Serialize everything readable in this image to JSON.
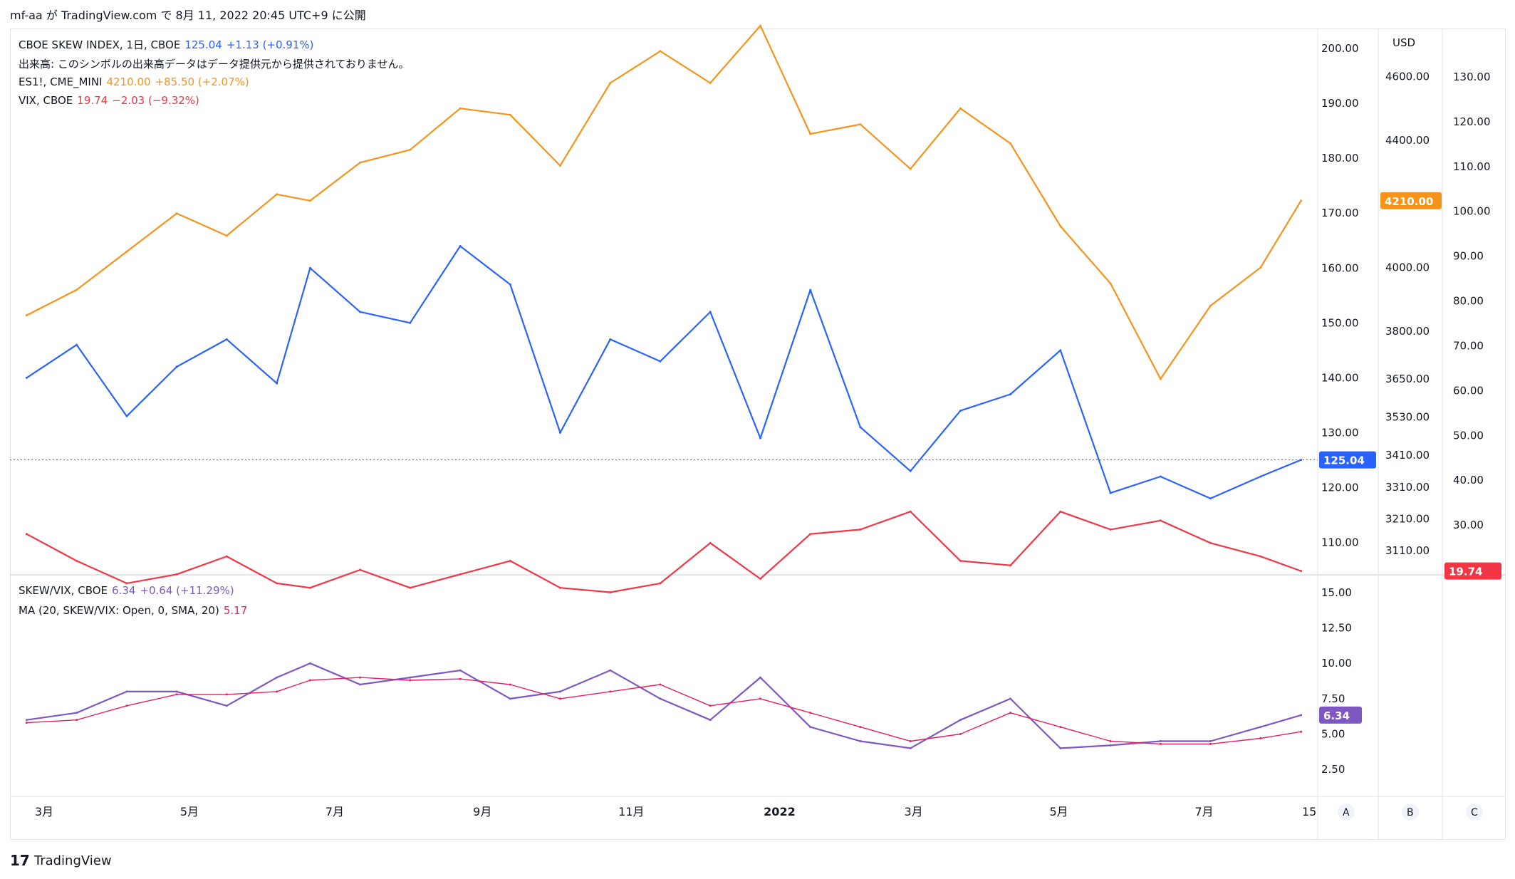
{
  "header": {
    "text": "mf-aa が TradingView.com で 8月 11, 2022 20:45 UTC+9 に公開"
  },
  "footer": {
    "logo": "17",
    "brand": "TradingView"
  },
  "legend_top": [
    {
      "name": "CBOE SKEW INDEX, 1日, CBOE",
      "value": "125.04",
      "change": "+1.13 (+0.91%)",
      "color": "#2962ff"
    },
    {
      "name": "出来高: このシンボルの出来高データはデータ提供元から提供されておりません。",
      "value": "",
      "change": "",
      "color": "#131722"
    },
    {
      "name": "ES1!, CME_MINI",
      "value": "4210.00",
      "change": "+85.50 (+2.07%)",
      "color": "#f7931a"
    },
    {
      "name": "VIX, CBOE",
      "value": "19.74",
      "change": "−2.03 (−9.32%)",
      "color": "#f23645"
    }
  ],
  "legend_bottom": [
    {
      "name": "SKEW/VIX, CBOE",
      "value": "6.34",
      "change": "+0.64 (+11.29%)",
      "color": "#7e57c2"
    },
    {
      "name": "MA (20, SKEW/VIX: Open, 0, SMA, 20)",
      "value": "5.17",
      "change": "",
      "color": "#e91e63"
    }
  ],
  "axes": {
    "usd_label": "USD",
    "skew_ticks": [
      "200.00",
      "190.00",
      "180.00",
      "170.00",
      "160.00",
      "150.00",
      "140.00",
      "130.00",
      "120.00",
      "110.00"
    ],
    "es_ticks": [
      "4600.00",
      "4400.00",
      "4210.00",
      "4000.00",
      "3800.00",
      "3650.00",
      "3530.00",
      "3410.00",
      "3310.00",
      "3210.00",
      "3110.00"
    ],
    "vix_ticks": [
      "130.00",
      "120.00",
      "110.00",
      "100.00",
      "90.00",
      "80.00",
      "70.00",
      "60.00",
      "50.00",
      "40.00",
      "30.00"
    ],
    "ratio_ticks": [
      "15.00",
      "12.50",
      "10.00",
      "7.50",
      "5.00",
      "2.50"
    ],
    "x_ticks": [
      "3月",
      "5月",
      "7月",
      "9月",
      "11月",
      "2022",
      "3月",
      "5月",
      "7月",
      "15"
    ],
    "scale_buttons": [
      "A",
      "B",
      "C"
    ]
  },
  "badges": {
    "skew": "125.04",
    "es": "4210.00",
    "vix": "19.74",
    "ratio": "6.34"
  },
  "colors": {
    "skew": "#2962ff",
    "es": "#f7931a",
    "vix": "#f23645",
    "ratio": "#7e57c2",
    "ma": "#e91e63"
  },
  "chart_data": [
    {
      "type": "line",
      "title": "CBOE SKEW INDEX / ES1! / VIX",
      "x_range": [
        "2021-02-15",
        "2022-08-15"
      ],
      "series": [
        {
          "name": "CBOE SKEW INDEX",
          "axis": "SKEW",
          "ylim": [
            105,
            203
          ],
          "x": [
            "2021-02-22",
            "2021-03-15",
            "2021-04-05",
            "2021-04-26",
            "2021-05-17",
            "2021-06-07",
            "2021-06-21",
            "2021-07-12",
            "2021-08-02",
            "2021-08-23",
            "2021-09-13",
            "2021-10-04",
            "2021-10-25",
            "2021-11-15",
            "2021-12-06",
            "2021-12-27",
            "2022-01-17",
            "2022-02-07",
            "2022-02-28",
            "2022-03-21",
            "2022-04-11",
            "2022-05-02",
            "2022-05-23",
            "2022-06-13",
            "2022-07-04",
            "2022-07-25",
            "2022-08-11"
          ],
          "values": [
            140,
            146,
            133,
            142,
            147,
            139,
            160,
            152,
            150,
            164,
            157,
            130,
            147,
            143,
            152,
            129,
            156,
            131,
            123,
            134,
            137,
            145,
            119,
            122,
            118,
            122,
            125.04
          ]
        },
        {
          "name": "ES1!",
          "axis": "ES",
          "ylim": [
            3050,
            4740
          ],
          "x": [
            "2021-02-22",
            "2021-03-15",
            "2021-04-05",
            "2021-04-26",
            "2021-05-17",
            "2021-06-07",
            "2021-06-21",
            "2021-07-12",
            "2021-08-02",
            "2021-08-23",
            "2021-09-13",
            "2021-10-04",
            "2021-10-25",
            "2021-11-15",
            "2021-12-06",
            "2021-12-27",
            "2022-01-17",
            "2022-02-07",
            "2022-02-28",
            "2022-03-21",
            "2022-04-11",
            "2022-05-02",
            "2022-05-23",
            "2022-06-13",
            "2022-07-04",
            "2022-07-25",
            "2022-08-11"
          ],
          "values": [
            3850,
            3930,
            4050,
            4170,
            4100,
            4230,
            4210,
            4330,
            4370,
            4500,
            4480,
            4320,
            4580,
            4680,
            4580,
            4760,
            4420,
            4450,
            4310,
            4500,
            4390,
            4130,
            3950,
            3650,
            3880,
            4000,
            4210
          ]
        },
        {
          "name": "VIX",
          "axis": "VIX",
          "ylim": [
            20,
            140
          ],
          "x": [
            "2021-02-22",
            "2021-03-15",
            "2021-04-05",
            "2021-04-26",
            "2021-05-17",
            "2021-06-07",
            "2021-06-21",
            "2021-07-12",
            "2021-08-02",
            "2021-08-23",
            "2021-09-13",
            "2021-10-04",
            "2021-10-25",
            "2021-11-15",
            "2021-12-06",
            "2021-12-27",
            "2022-01-17",
            "2022-02-07",
            "2022-02-28",
            "2022-03-21",
            "2022-04-11",
            "2022-05-02",
            "2022-05-23",
            "2022-06-13",
            "2022-07-04",
            "2022-07-25",
            "2022-08-11"
          ],
          "values": [
            28,
            22,
            17,
            19,
            23,
            17,
            16,
            20,
            16,
            19,
            22,
            16,
            15,
            17,
            26,
            18,
            28,
            29,
            33,
            22,
            21,
            33,
            29,
            31,
            26,
            23,
            19.74
          ]
        }
      ]
    },
    {
      "type": "line",
      "title": "SKEW/VIX",
      "ylim": [
        1,
        16
      ],
      "x_range": [
        "2021-02-15",
        "2022-08-15"
      ],
      "series": [
        {
          "name": "SKEW/VIX",
          "x": [
            "2021-02-22",
            "2021-03-15",
            "2021-04-05",
            "2021-04-26",
            "2021-05-17",
            "2021-06-07",
            "2021-06-21",
            "2021-07-12",
            "2021-08-02",
            "2021-08-23",
            "2021-09-13",
            "2021-10-04",
            "2021-10-25",
            "2021-11-15",
            "2021-12-06",
            "2021-12-27",
            "2022-01-17",
            "2022-02-07",
            "2022-02-28",
            "2022-03-21",
            "2022-04-11",
            "2022-05-02",
            "2022-05-23",
            "2022-06-13",
            "2022-07-04",
            "2022-07-25",
            "2022-08-11"
          ],
          "values": [
            6.0,
            6.5,
            8.0,
            8.0,
            7.0,
            9.0,
            10.0,
            8.5,
            9.0,
            9.5,
            7.5,
            8.0,
            9.5,
            7.5,
            6.0,
            9.0,
            5.5,
            4.5,
            4.0,
            6.0,
            7.5,
            4.0,
            4.2,
            4.5,
            4.5,
            5.5,
            6.34
          ]
        },
        {
          "name": "MA (20, SKEW/VIX: Open, 0, SMA, 20)",
          "x": [
            "2021-02-22",
            "2021-03-15",
            "2021-04-05",
            "2021-04-26",
            "2021-05-17",
            "2021-06-07",
            "2021-06-21",
            "2021-07-12",
            "2021-08-02",
            "2021-08-23",
            "2021-09-13",
            "2021-10-04",
            "2021-10-25",
            "2021-11-15",
            "2021-12-06",
            "2021-12-27",
            "2022-01-17",
            "2022-02-07",
            "2022-02-28",
            "2022-03-21",
            "2022-04-11",
            "2022-05-02",
            "2022-05-23",
            "2022-06-13",
            "2022-07-04",
            "2022-07-25",
            "2022-08-11"
          ],
          "values": [
            5.8,
            6.0,
            7.0,
            7.8,
            7.8,
            8.0,
            8.8,
            9.0,
            8.8,
            8.9,
            8.5,
            7.5,
            8.0,
            8.5,
            7.0,
            7.5,
            6.5,
            5.5,
            4.5,
            5.0,
            6.5,
            5.5,
            4.5,
            4.3,
            4.3,
            4.7,
            5.17
          ]
        }
      ]
    }
  ]
}
